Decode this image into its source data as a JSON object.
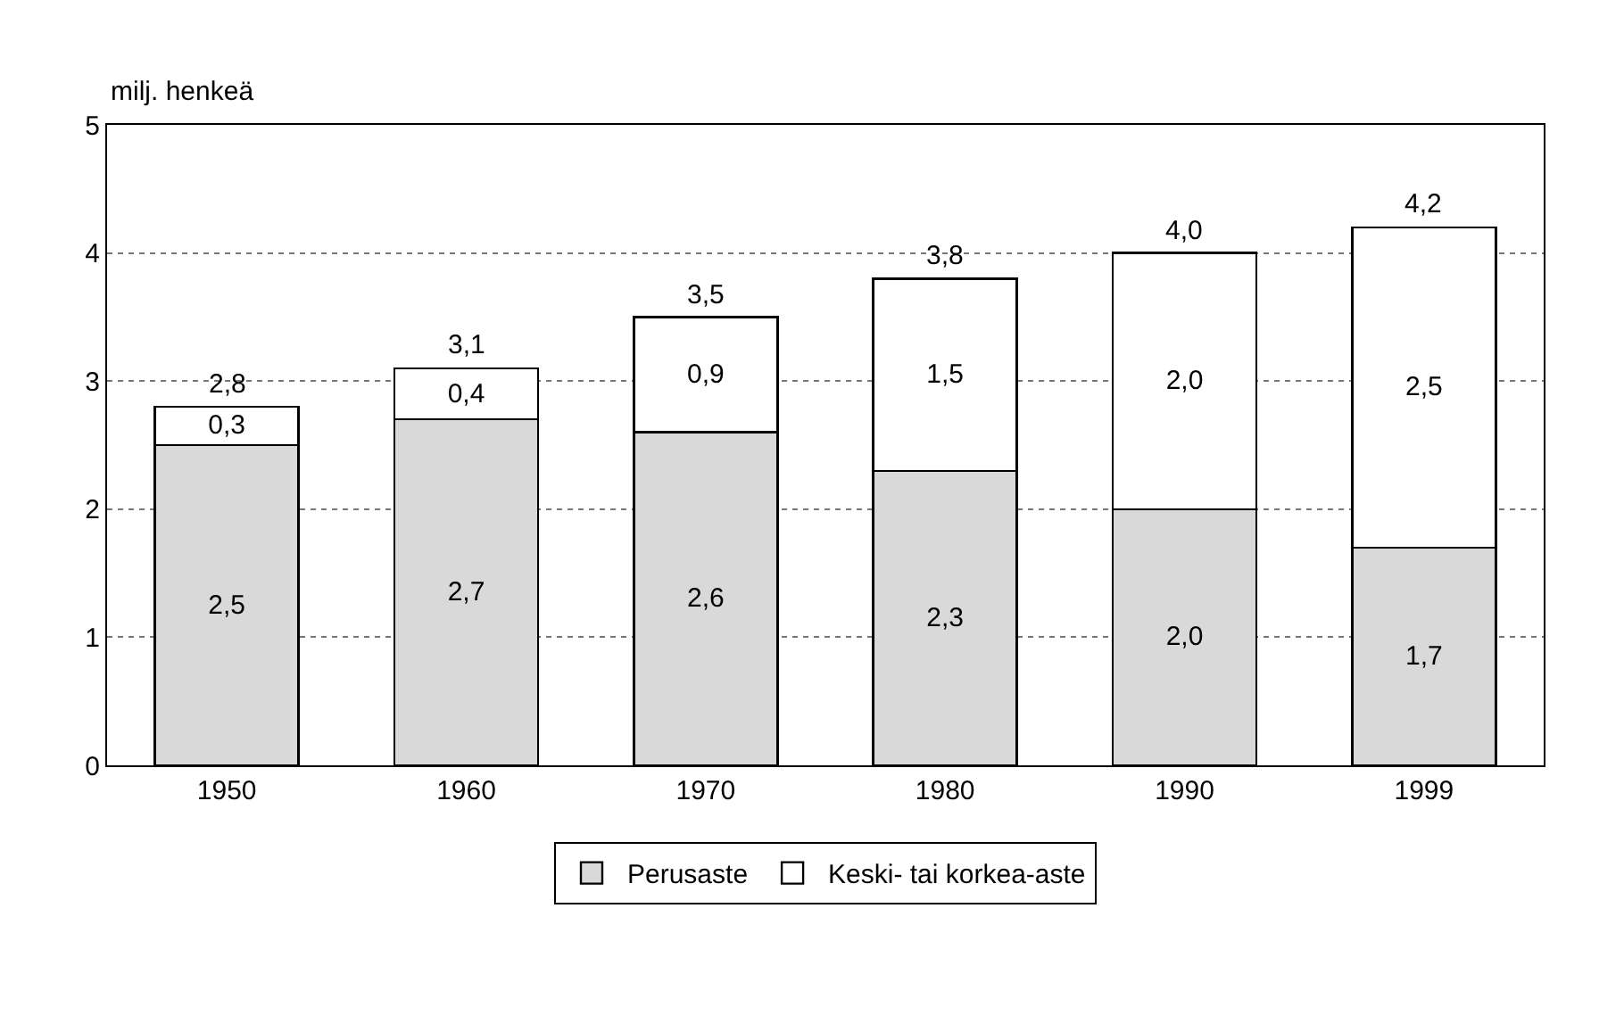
{
  "chart_data": {
    "type": "bar",
    "stacked": true,
    "ylabel": "milj. henkeä",
    "categories": [
      "1950",
      "1960",
      "1970",
      "1980",
      "1990",
      "1999"
    ],
    "series": [
      {
        "name": "Perusaste",
        "color": "#d9d9d9",
        "values": [
          2.5,
          2.7,
          2.6,
          2.3,
          2.0,
          1.7
        ],
        "value_labels": [
          "2,5",
          "2,7",
          "2,6",
          "2,3",
          "2,0",
          "1,7"
        ]
      },
      {
        "name": "Keski- tai korkea-aste",
        "color": "#ffffff",
        "values": [
          0.3,
          0.4,
          0.9,
          1.5,
          2.0,
          2.5
        ],
        "value_labels": [
          "0,3",
          "0,4",
          "0,9",
          "1,5",
          "2,0",
          "2,5"
        ]
      }
    ],
    "totals": [
      "2,8",
      "3,1",
      "3,5",
      "3,8",
      "4,0",
      "4,2"
    ],
    "ylim": [
      0,
      5
    ],
    "yticks": [
      0,
      1,
      2,
      3,
      4,
      5
    ],
    "grid": "y",
    "legend": "bottom"
  }
}
